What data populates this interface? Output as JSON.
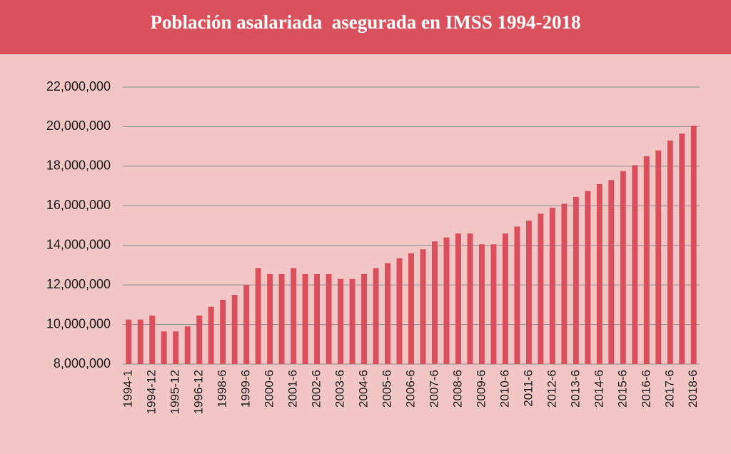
{
  "chart_data": {
    "type": "bar",
    "title": "Población asalariada  asegurada en IMSS 1994-2018",
    "categories": [
      "1994-1",
      null,
      "1994-12",
      null,
      "1995-12",
      null,
      "1996-12",
      null,
      "1998-6",
      null,
      "1999-6",
      null,
      "2000-6",
      null,
      "2001-6",
      null,
      "2002-6",
      null,
      "2003-6",
      null,
      "2004-6",
      null,
      "2005-6",
      null,
      "2006-6",
      null,
      "2007-6",
      null,
      "2008-6",
      null,
      "2009-6",
      null,
      "2010-6",
      null,
      "2011-6",
      null,
      "2012-6",
      null,
      "2013-6",
      null,
      "2014-6",
      null,
      "2015-6",
      null,
      "2016-6",
      null,
      "2017-6",
      null,
      "2018-6"
    ],
    "values": [
      10250000,
      10250000,
      10450000,
      9650000,
      9650000,
      9900000,
      10450000,
      10900000,
      11250000,
      11500000,
      12000000,
      12850000,
      12550000,
      12550000,
      12850000,
      12550000,
      12550000,
      12550000,
      12300000,
      12300000,
      12550000,
      12850000,
      13100000,
      13350000,
      13600000,
      13800000,
      14200000,
      14400000,
      14600000,
      14600000,
      14050000,
      14050000,
      14600000,
      14950000,
      15250000,
      15600000,
      15900000,
      16100000,
      16450000,
      16750000,
      17100000,
      17300000,
      17750000,
      18050000,
      18500000,
      18800000,
      19300000,
      19650000,
      20050000
    ],
    "color": "#d94f5c",
    "ylim": [
      8000000,
      22000000
    ],
    "yticks": [
      {
        "value": 8000000,
        "label": "8,000,000"
      },
      {
        "value": 10000000,
        "label": "10,000,000"
      },
      {
        "value": 12000000,
        "label": "12,000,000"
      },
      {
        "value": 14000000,
        "label": "14,000,000"
      },
      {
        "value": 16000000,
        "label": "16,000,000"
      },
      {
        "value": 18000000,
        "label": "18,000,000"
      },
      {
        "value": 20000000,
        "label": "20,000,000"
      },
      {
        "value": 22000000,
        "label": "22,000,000"
      }
    ],
    "grid": true
  }
}
